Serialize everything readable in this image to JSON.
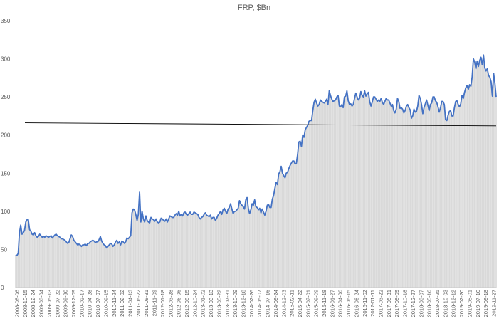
{
  "chart_data": {
    "type": "area",
    "title": "FRP, $Bn",
    "ylim": [
      0,
      350
    ],
    "yticks": [
      0,
      50,
      100,
      150,
      200,
      250,
      300,
      350
    ],
    "grid": false,
    "legend": "none",
    "xtick_labels": [
      "2008-08-06",
      "2008-10-15",
      "2008-12-24",
      "2009-03-04",
      "2009-05-13",
      "2009-07-22",
      "2009-09-30",
      "2009-12-09",
      "2010-02-17",
      "2010-04-28",
      "2010-07-07",
      "2010-09-15",
      "2010-11-24",
      "2011-02-02",
      "2011-04-13",
      "2011-06-22",
      "2011-08-31",
      "2011-11-09",
      "2012-01-18",
      "2012-03-28",
      "2012-06-06",
      "2012-08-15",
      "2012-10-24",
      "2013-01-02",
      "2013-03-13",
      "2013-05-22",
      "2013-07-31",
      "2013-10-09",
      "2013-12-18",
      "2014-02-26",
      "2014-05-07",
      "2014-07-16",
      "2014-09-24",
      "2014-12-03",
      "2015-02-11",
      "2015-04-22",
      "2015-07-01",
      "2015-09-09",
      "2015-11-18",
      "2016-01-27",
      "2016-04-06",
      "2016-06-15",
      "2016-08-24",
      "2016-11-02",
      "2017-01-11",
      "2017-03-22",
      "2017-05-31",
      "2017-08-09",
      "2017-10-18",
      "2017-12-27",
      "2018-03-07",
      "2018-05-16",
      "2018-07-25",
      "2018-10-03",
      "2018-12-12",
      "2019-02-20",
      "2019-05-01",
      "2019-07-10",
      "2019-09-18",
      "2019-11-27"
    ],
    "series": [
      {
        "values": [
          43,
          42,
          45,
          72,
          82,
          70,
          72,
          75,
          86,
          89,
          89,
          76,
          74,
          70,
          69,
          72,
          68,
          66,
          67,
          70,
          68,
          66,
          67,
          66,
          68,
          67,
          66,
          67,
          68,
          65,
          67,
          69,
          70,
          68,
          67,
          66,
          64,
          64,
          63,
          62,
          60,
          58,
          59,
          64,
          69,
          67,
          62,
          60,
          58,
          56,
          57,
          56,
          54,
          56,
          56,
          57,
          55,
          58,
          58,
          60,
          61,
          62,
          61,
          59,
          60,
          60,
          63,
          67,
          61,
          58,
          56,
          55,
          52,
          54,
          56,
          58,
          57,
          54,
          56,
          60,
          62,
          58,
          60,
          56,
          61,
          60,
          58,
          60,
          65,
          64,
          66,
          68,
          98,
          103,
          102,
          96,
          88,
          96,
          125,
          86,
          100,
          90,
          86,
          94,
          88,
          86,
          85,
          92,
          90,
          89,
          87,
          90,
          86,
          85,
          86,
          91,
          90,
          88,
          87,
          90,
          86,
          90,
          94,
          93,
          92,
          92,
          95,
          97,
          95,
          100,
          94,
          96,
          94,
          98,
          99,
          96,
          95,
          97,
          99,
          96,
          96,
          99,
          98,
          97,
          96,
          92,
          90,
          92,
          93,
          96,
          98,
          95,
          94,
          93,
          95,
          90,
          92,
          92,
          88,
          91,
          95,
          97,
          100,
          96,
          102,
          104,
          100,
          97,
          103,
          105,
          110,
          103,
          97,
          100,
          100,
          102,
          104,
          114,
          110,
          108,
          106,
          103,
          115,
          118,
          104,
          97,
          102,
          110,
          108,
          115,
          106,
          105,
          102,
          104,
          98,
          103,
          99,
          95,
          100,
          108,
          109,
          105,
          105,
          116,
          121,
          130,
          138,
          135,
          149,
          152,
          159,
          150,
          147,
          144,
          150,
          151,
          156,
          160,
          163,
          166,
          166,
          162,
          163,
          175,
          191,
          192,
          185,
          200,
          197,
          207,
          210,
          213,
          218,
          219,
          219,
          232,
          243,
          247,
          242,
          238,
          240,
          246,
          244,
          243,
          242,
          244,
          247,
          240,
          258,
          252,
          247,
          244,
          245,
          246,
          250,
          252,
          238,
          237,
          240,
          236,
          250,
          251,
          258,
          245,
          240,
          241,
          238,
          240,
          248,
          255,
          250,
          246,
          248,
          257,
          252,
          250,
          258,
          251,
          254,
          256,
          244,
          238,
          243,
          250,
          250,
          247,
          244,
          246,
          244,
          248,
          243,
          240,
          244,
          248,
          246,
          246,
          242,
          238,
          240,
          232,
          229,
          234,
          248,
          244,
          235,
          236,
          234,
          229,
          232,
          238,
          240,
          236,
          233,
          222,
          225,
          234,
          230,
          231,
          238,
          252,
          248,
          240,
          228,
          236,
          241,
          246,
          239,
          232,
          240,
          242,
          250,
          250,
          245,
          243,
          237,
          230,
          236,
          244,
          244,
          240,
          220,
          219,
          226,
          231,
          232,
          225,
          225,
          236,
          244,
          245,
          240,
          237,
          241,
          252,
          248,
          256,
          262,
          265,
          260,
          266,
          264,
          276,
          300,
          296,
          287,
          297,
          290,
          298,
          302,
          292,
          305,
          288,
          284,
          287,
          278,
          276,
          270,
          251,
          281,
          268,
          250
        ]
      }
    ],
    "trend_line": {
      "start": 216,
      "end": 212,
      "color": "#000000"
    },
    "colors": {
      "line": "#4472c4",
      "fill": "#d9d9d9",
      "trend": "#000000"
    }
  }
}
